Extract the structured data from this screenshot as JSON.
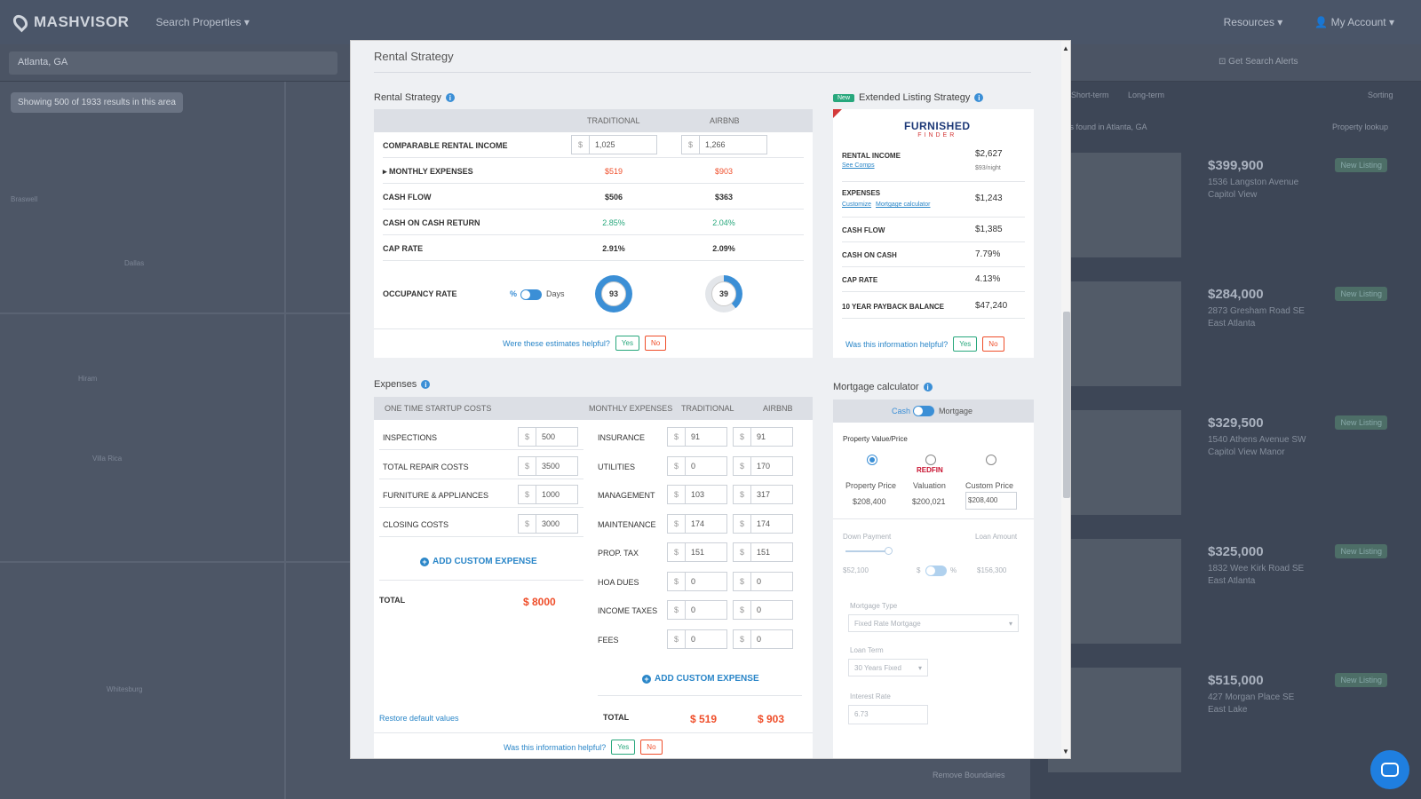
{
  "app": {
    "logo": "MASHVISOR",
    "search_properties": "Search Properties",
    "resources": "Resources",
    "my_account": "My Account",
    "location": "Atlanta, GA",
    "showing": "Showing 500 of 1933 results in this area",
    "get_alerts": "Get Search Alerts",
    "tabs": [
      "Short-term",
      "Long-term"
    ],
    "sorting": "Sorting",
    "results_found": "...ies found in Atlanta, GA",
    "property_lookup": "Property lookup",
    "remove_boundaries": "Remove Boundaries",
    "listings": [
      {
        "price": "$399,900",
        "address": "1536 Langston Avenue",
        "area": "Capitol View",
        "badge": "New Listing"
      },
      {
        "price": "$284,000",
        "address": "2873 Gresham Road SE",
        "area": "East Atlanta",
        "badge": "New Listing"
      },
      {
        "price": "$329,500",
        "address": "1540 Athens Avenue SW",
        "area": "Capitol View Manor",
        "badge": "New Listing"
      },
      {
        "price": "$325,000",
        "address": "1832 Wee Kirk Road SE",
        "area": "East Atlanta",
        "badge": "New Listing"
      },
      {
        "price": "$515,000",
        "address": "427 Morgan Place SE",
        "area": "East Lake",
        "badge": "New Listing"
      }
    ]
  },
  "modal": {
    "title": "Rental Strategy",
    "rental_strategy": {
      "label": "Rental Strategy",
      "col_traditional": "TRADITIONAL",
      "col_airbnb": "AIRBNB",
      "comparable_label": "COMPARABLE RENTAL INCOME",
      "comparable_trad": "1,025",
      "comparable_air": "1,266",
      "monthly_label": "MONTHLY EXPENSES",
      "monthly_trad": "$519",
      "monthly_air": "$903",
      "cashflow_label": "CASH FLOW",
      "cashflow_trad": "$506",
      "cashflow_air": "$363",
      "coc_label": "CASH ON CASH RETURN",
      "coc_trad": "2.85%",
      "coc_air": "2.04%",
      "cap_label": "CAP RATE",
      "cap_trad": "2.91%",
      "cap_air": "2.09%",
      "occ_label": "OCCUPANCY RATE",
      "occ_pct": "%",
      "occ_days": "Days",
      "occ_trad": "93",
      "occ_air": "39",
      "helpful": "Were these estimates helpful?",
      "yes": "Yes",
      "no": "No"
    },
    "expenses": {
      "label": "Expenses",
      "startup_header": "ONE TIME STARTUP COSTS",
      "monthly_header": "MONTHLY EXPENSES",
      "col_traditional": "TRADITIONAL",
      "col_airbnb": "AIRBNB",
      "startup": [
        {
          "label": "INSPECTIONS",
          "value": "500"
        },
        {
          "label": "TOTAL REPAIR COSTS",
          "value": "3500"
        },
        {
          "label": "FURNITURE & APPLIANCES",
          "value": "1000"
        },
        {
          "label": "CLOSING COSTS",
          "value": "3000"
        }
      ],
      "monthly": [
        {
          "label": "INSURANCE",
          "trad": "91",
          "air": "91"
        },
        {
          "label": "UTILITIES",
          "trad": "0",
          "air": "170"
        },
        {
          "label": "MANAGEMENT",
          "trad": "103",
          "air": "317"
        },
        {
          "label": "MAINTENANCE",
          "trad": "174",
          "air": "174"
        },
        {
          "label": "PROP. TAX",
          "trad": "151",
          "air": "151"
        },
        {
          "label": "HOA DUES",
          "trad": "0",
          "air": "0"
        },
        {
          "label": "INCOME TAXES",
          "trad": "0",
          "air": "0"
        },
        {
          "label": "FEES",
          "trad": "0",
          "air": "0"
        }
      ],
      "add_custom": "ADD CUSTOM EXPENSE",
      "total_label": "TOTAL",
      "startup_total": "$ 8000",
      "monthly_total_trad": "$ 519",
      "monthly_total_air": "$ 903",
      "restore": "Restore default values",
      "helpful": "Was this information helpful?",
      "yes": "Yes",
      "no": "No",
      "currency": "$"
    },
    "extended": {
      "badge": "New",
      "label": "Extended Listing Strategy",
      "logo_line1": "FURNISHED",
      "logo_line2": "FINDER",
      "rental_income_label": "RENTAL INCOME",
      "rental_income": "$2,627",
      "rental_income_sub": "$93/night",
      "see_comps": "See Comps",
      "expenses_label": "EXPENSES",
      "expenses": "$1,243",
      "customize": "Customize",
      "mortgage_calc_link": "Mortgage calculator",
      "cashflow_label": "CASH FLOW",
      "cashflow": "$1,385",
      "coc_label": "CASH ON CASH",
      "coc": "7.79%",
      "cap_label": "CAP RATE",
      "cap": "4.13%",
      "payback_label": "10 YEAR PAYBACK BALANCE",
      "payback": "$47,240",
      "helpful": "Was this information helpful?",
      "yes": "Yes",
      "no": "No"
    },
    "mortgage": {
      "label": "Mortgage calculator",
      "cash": "Cash",
      "mortgage": "Mortgage",
      "property_value": "Property Value/Price",
      "opt_property_price": "Property Price",
      "opt_property_price_val": "$208,400",
      "redfin": "REDFIN",
      "opt_valuation": "Valuation",
      "opt_valuation_val": "$200,021",
      "opt_custom": "Custom Price",
      "custom_value": "208,400",
      "down_payment": "Down Payment",
      "loan_amount": "Loan Amount",
      "down_value": "$52,100",
      "loan_value": "$156,300",
      "dollar": "$",
      "percent": "%",
      "mortgage_type_label": "Mortgage Type",
      "mortgage_type": "Fixed Rate Mortgage",
      "loan_term_label": "Loan Term",
      "loan_term": "30 Years Fixed",
      "interest_rate_label": "Interest Rate",
      "interest_rate": "6.73"
    }
  }
}
